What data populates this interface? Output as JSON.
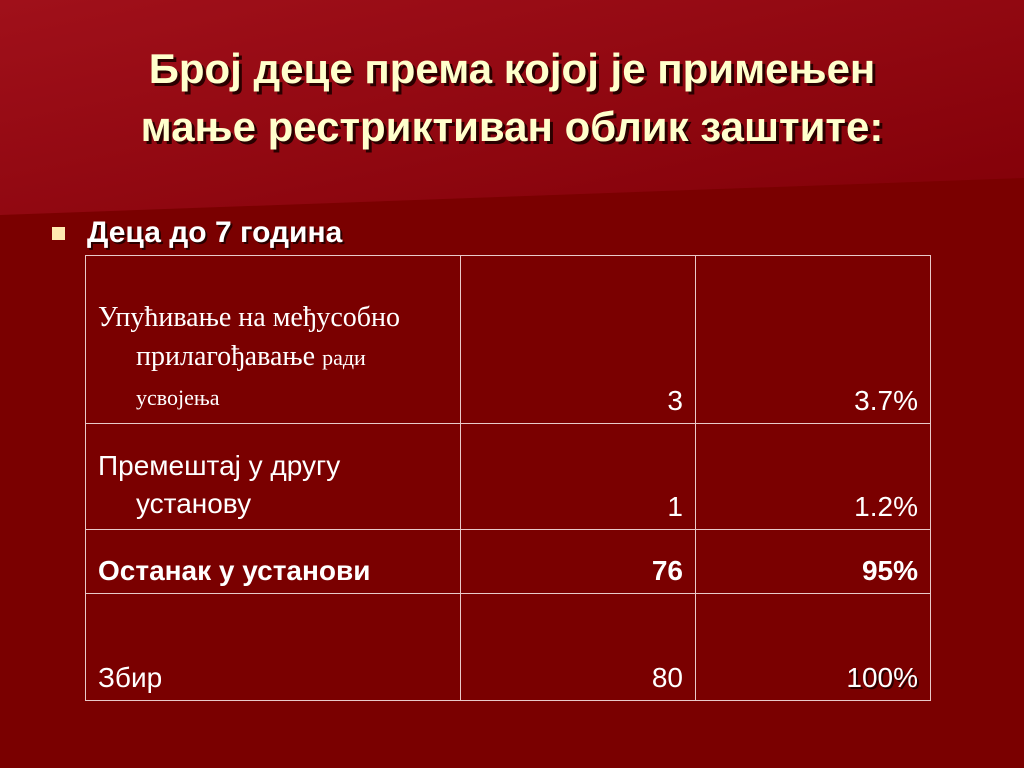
{
  "slide": {
    "title_line1": "Број деце према којој је примењен",
    "title_line2": "мање рестриктиван облик заштите:",
    "bullet": "Деца до 7 година"
  },
  "table": {
    "rows": [
      {
        "label_main": "Упућивање на међусобно прилагођавање",
        "label_small_a": "ради",
        "label_small_b": "усвојења",
        "count": "3",
        "percent": "3.7%"
      },
      {
        "label": "Премештај у другу установу",
        "count": "1",
        "percent": "1.2%"
      },
      {
        "label": "Останак у установи",
        "count": "76",
        "percent": "95%"
      },
      {
        "label": "Збир",
        "count": "80",
        "percent": "100%"
      }
    ]
  }
}
